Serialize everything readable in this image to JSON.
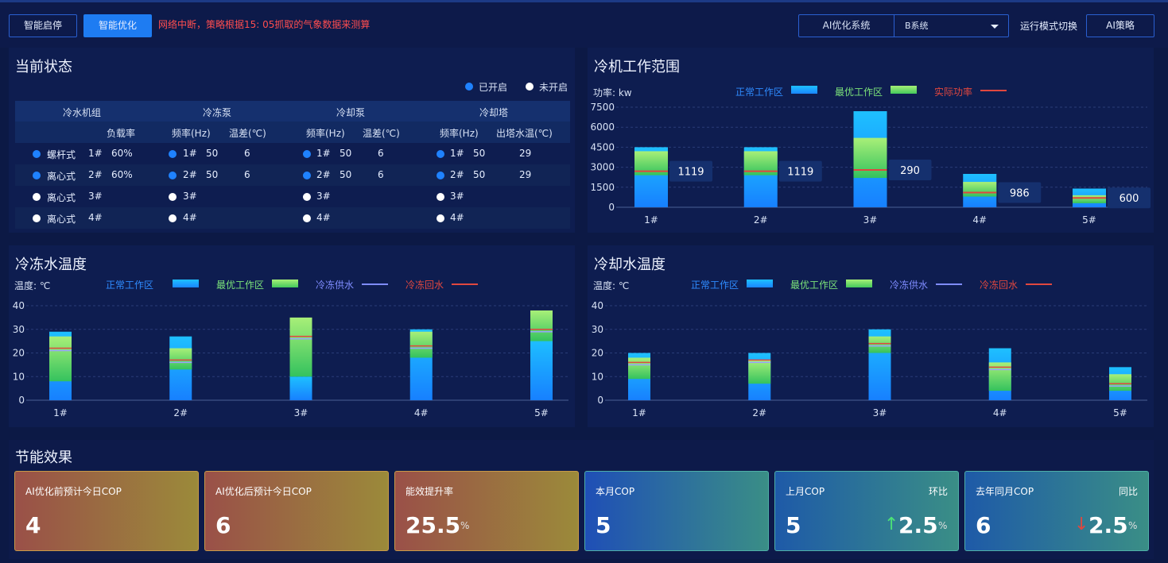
{
  "toolbar": {
    "btn_start_stop": "智能启停",
    "btn_optimize": "智能优化",
    "warning": "网络中断，策略根据15: 05抓取的气象数据来测算",
    "system_label": "AI优化系统",
    "system_value": "B系统",
    "mode_label": "运行模式切换",
    "mode_value": "AI策略"
  },
  "status": {
    "title": "当前状态",
    "legend_on": "已开启",
    "legend_off": "未开启",
    "groups": [
      "冷水机组",
      "冷冻泵",
      "冷却泵",
      "冷却塔"
    ],
    "subheaders": {
      "chiller_load": "负载率",
      "freq1": "频率(Hz)",
      "diff1": "温差(℃)",
      "freq2": "频率(Hz)",
      "diff2": "温差(℃)",
      "freq3": "频率(Hz)",
      "outlet": "出塔水温(℃)"
    },
    "rows": [
      {
        "chiller_type": "螺杆式",
        "chiller_id": "1#",
        "load": "60%",
        "pump1_id": "1#",
        "pump1_freq": "50",
        "pump1_diff": "6",
        "pump2_id": "1#",
        "pump2_freq": "50",
        "pump2_diff": "6",
        "tower_id": "1#",
        "tower_freq": "50",
        "tower_temp": "29",
        "on": true
      },
      {
        "chiller_type": "离心式",
        "chiller_id": "2#",
        "load": "60%",
        "pump1_id": "2#",
        "pump1_freq": "50",
        "pump1_diff": "6",
        "pump2_id": "2#",
        "pump2_freq": "50",
        "pump2_diff": "6",
        "tower_id": "2#",
        "tower_freq": "50",
        "tower_temp": "29",
        "on": true
      },
      {
        "chiller_type": "离心式",
        "chiller_id": "3#",
        "load": "",
        "pump1_id": "3#",
        "pump1_freq": "",
        "pump1_diff": "",
        "pump2_id": "3#",
        "pump2_freq": "",
        "pump2_diff": "",
        "tower_id": "3#",
        "tower_freq": "",
        "tower_temp": "",
        "on": false
      },
      {
        "chiller_type": "离心式",
        "chiller_id": "4#",
        "load": "",
        "pump1_id": "4#",
        "pump1_freq": "",
        "pump1_diff": "",
        "pump2_id": "4#",
        "pump2_freq": "",
        "pump2_diff": "",
        "tower_id": "4#",
        "tower_freq": "",
        "tower_temp": "",
        "on": false
      }
    ]
  },
  "legend": {
    "normal": "正常工作区",
    "optimal": "最优工作区",
    "actual_power": "实际功率",
    "chilled_supply": "冷冻供水",
    "chilled_return": "冷冻回水"
  },
  "colors": {
    "normal": "#15a6ff",
    "optimal": "#7ce37a",
    "actual": "#e0473f",
    "supply": "#7f8cff",
    "return": "#e0473f"
  },
  "chart_data": [
    {
      "type": "bar",
      "title": "冷机工作范围",
      "ylabel": "功率: kw",
      "categories": [
        "1#",
        "2#",
        "3#",
        "4#",
        "5#"
      ],
      "ylim": [
        0,
        7500
      ],
      "yticks": [
        0,
        1500,
        3000,
        4500,
        6000,
        7500
      ],
      "grid": true,
      "legend_placement": "top",
      "normal_range": [
        [
          0,
          4500
        ],
        [
          0,
          4500
        ],
        [
          0,
          7200
        ],
        [
          0,
          2500
        ],
        [
          0,
          1400
        ]
      ],
      "optimal_range": [
        [
          2400,
          4200
        ],
        [
          2400,
          4200
        ],
        [
          2200,
          5200
        ],
        [
          800,
          1900
        ],
        [
          300,
          900
        ]
      ],
      "actual_power": [
        2700,
        2700,
        2800,
        1100,
        700
      ],
      "labels": [
        "1119",
        "1119",
        "290",
        "986",
        "600"
      ]
    },
    {
      "type": "bar",
      "title": "冷冻水温度",
      "ylabel": "温度: ℃",
      "categories": [
        "1#",
        "2#",
        "3#",
        "4#",
        "5#"
      ],
      "ylim": [
        0,
        40
      ],
      "yticks": [
        0,
        10,
        20,
        30,
        40
      ],
      "grid": true,
      "legend_placement": "top",
      "normal_range": [
        [
          0,
          29
        ],
        [
          0,
          27
        ],
        [
          0,
          10
        ],
        [
          0,
          30
        ],
        [
          0,
          26
        ]
      ],
      "optimal_range": [
        [
          8,
          27
        ],
        [
          13,
          22
        ],
        [
          10,
          35
        ],
        [
          18,
          29
        ],
        [
          25,
          38
        ]
      ],
      "supply": [
        21,
        16,
        26,
        22,
        29
      ],
      "return": [
        22,
        17,
        27,
        23,
        30
      ]
    },
    {
      "type": "bar",
      "title": "冷却水温度",
      "ylabel": "温度: ℃",
      "categories": [
        "1#",
        "2#",
        "3#",
        "4#",
        "5#"
      ],
      "ylim": [
        0,
        40
      ],
      "yticks": [
        0,
        10,
        20,
        30,
        40
      ],
      "grid": true,
      "legend_placement": "top",
      "normal_range": [
        [
          0,
          20
        ],
        [
          0,
          20
        ],
        [
          0,
          30
        ],
        [
          0,
          22
        ],
        [
          0,
          14
        ]
      ],
      "optimal_range": [
        [
          9,
          18
        ],
        [
          7,
          17
        ],
        [
          20,
          27
        ],
        [
          4,
          16
        ],
        [
          4,
          11
        ]
      ],
      "supply": [
        15,
        16,
        23,
        13,
        6
      ],
      "return": [
        16,
        17,
        24,
        14,
        7
      ]
    }
  ],
  "savings": {
    "title": "节能效果",
    "cards": [
      {
        "label": "AI优化前预计今日COP",
        "value": "4",
        "unit": "",
        "compare": "",
        "trend": ""
      },
      {
        "label": "AI优化后预计今日COP",
        "value": "6",
        "unit": "",
        "compare": "",
        "trend": ""
      },
      {
        "label": "能效提升率",
        "value": "25.5",
        "unit": "%",
        "compare": "",
        "trend": ""
      },
      {
        "label": "本月COP",
        "value": "5",
        "unit": "",
        "compare": "",
        "trend": ""
      },
      {
        "label": "上月COP",
        "value": "5",
        "unit": "%",
        "compare": "环比",
        "trend_value": "2.5",
        "trend": "up"
      },
      {
        "label": "去年同月COP",
        "value": "6",
        "unit": "%",
        "compare": "同比",
        "trend_value": "2.5",
        "trend": "down"
      }
    ]
  }
}
